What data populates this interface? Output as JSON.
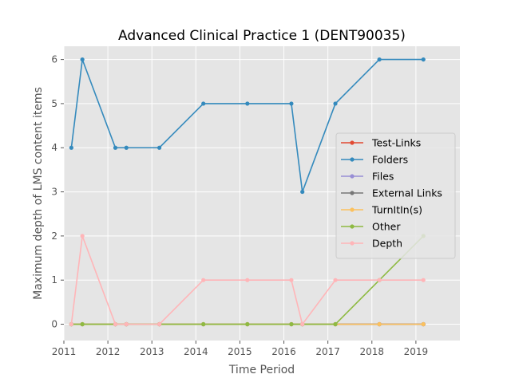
{
  "chart_data": {
    "type": "line",
    "title": "Advanced Clinical Practice 1 (DENT90035)",
    "xlabel": "Time Period",
    "ylabel": "Maximum depth of LMS content items",
    "xlim": [
      2011,
      2020
    ],
    "ylim": [
      -0.37,
      6.3
    ],
    "xticks": [
      2011,
      2012,
      2013,
      2014,
      2015,
      2016,
      2017,
      2018,
      2019
    ],
    "yticks": [
      0,
      1,
      2,
      3,
      4,
      5,
      6
    ],
    "grid": true,
    "legend_position": "center-right",
    "x": [
      2011.17,
      2011.42,
      2012.17,
      2012.42,
      2013.17,
      2014.17,
      2015.17,
      2016.17,
      2016.42,
      2017.17,
      2018.17,
      2019.17
    ],
    "series": [
      {
        "name": "Test-Links",
        "color": "#E24A33",
        "values": [
          0,
          0,
          0,
          0,
          0,
          0,
          0,
          0,
          0,
          0,
          0,
          0
        ]
      },
      {
        "name": "Folders",
        "color": "#348ABD",
        "values": [
          4,
          6,
          4,
          4,
          4,
          5,
          5,
          5,
          3,
          5,
          6,
          6
        ]
      },
      {
        "name": "Files",
        "color": "#988ED5",
        "values": [
          0,
          0,
          0,
          0,
          0,
          0,
          0,
          0,
          0,
          0,
          0,
          0
        ]
      },
      {
        "name": "External Links",
        "color": "#777777",
        "values": [
          0,
          0,
          0,
          0,
          0,
          0,
          0,
          0,
          0,
          0,
          0,
          0
        ]
      },
      {
        "name": "TurnItIn(s)",
        "color": "#FBC15E",
        "values": [
          0,
          0,
          0,
          0,
          0,
          0,
          0,
          0,
          0,
          0,
          0,
          0
        ]
      },
      {
        "name": "Other",
        "color": "#8EBA42",
        "values": [
          0,
          0,
          0,
          0,
          0,
          0,
          0,
          0,
          0,
          0,
          1,
          2
        ]
      },
      {
        "name": "Depth",
        "color": "#FFB5B8",
        "values": [
          0,
          2,
          0,
          0,
          0,
          1,
          1,
          1,
          0,
          1,
          1,
          1
        ]
      }
    ]
  }
}
